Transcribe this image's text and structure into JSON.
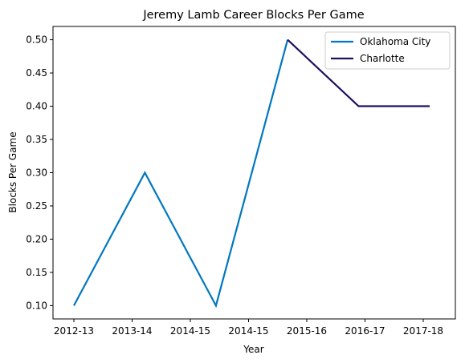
{
  "chart_data": {
    "type": "line",
    "title": "Jeremy Lamb Career Blocks Per Game",
    "xlabel": "Year",
    "ylabel": "Blocks Per Game",
    "categories": [
      "2012-13",
      "2013-14",
      "2014-15",
      "2014-15",
      "2015-16",
      "2016-17",
      "2017-18"
    ],
    "ylim": [
      0.08,
      0.52
    ],
    "yticks": [
      "0.10",
      "0.15",
      "0.20",
      "0.25",
      "0.30",
      "0.35",
      "0.40",
      "0.45",
      "0.50"
    ],
    "grid": false,
    "legend_position": "top-right",
    "series": [
      {
        "name": "Oklahoma City",
        "color": "#0077c0",
        "points": [
          {
            "x": 0,
            "y": 0.1
          },
          {
            "x": 1.22,
            "y": 0.3
          },
          {
            "x": 2.44,
            "y": 0.1
          },
          {
            "x": 3.67,
            "y": 0.5
          }
        ]
      },
      {
        "name": "Charlotte",
        "color": "#1d1160",
        "points": [
          {
            "x": 3.67,
            "y": 0.5
          },
          {
            "x": 4.89,
            "y": 0.4
          },
          {
            "x": 6.11,
            "y": 0.4
          }
        ]
      }
    ]
  }
}
